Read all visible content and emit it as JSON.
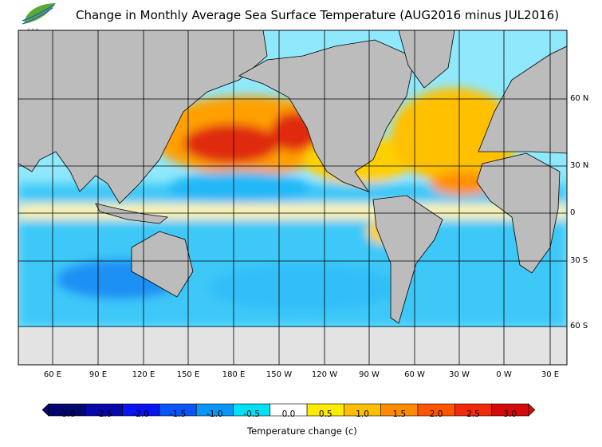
{
  "title": "Change in Monthly Average Sea Surface Temperature (AUG2016 minus JUL2016)",
  "logo_text": "HKO",
  "lon_labels": [
    "60 E",
    "90 E",
    "120 E",
    "150 E",
    "180 E",
    "150 W",
    "120 W",
    "90 W",
    "60 W",
    "30 W",
    "0 W",
    "30 E"
  ],
  "lat_labels": [
    "60 N",
    "30 N",
    "0",
    "30 S",
    "60 S"
  ],
  "colorbar": {
    "title": "Temperature change  (c)",
    "ticks": [
      "-3.0",
      "-2.5",
      "-2.0",
      "-1.5",
      "-1.0",
      "-0.5",
      "0.0",
      "0.5",
      "1.0",
      "1.5",
      "2.0",
      "2.5",
      "3.0"
    ],
    "colors": [
      "#05056e",
      "#0808a8",
      "#0a14f0",
      "#0a55f5",
      "#0a96f5",
      "#00e1f5",
      "#ffffff",
      "#ffeb00",
      "#ffbe00",
      "#ff8c00",
      "#ff5500",
      "#f02a0a",
      "#d20a0a"
    ],
    "under_color": "#05056e",
    "over_color": "#d20a0a"
  },
  "colors": {
    "land": "#bcbcbc",
    "ice": "#e3e3e3"
  }
}
